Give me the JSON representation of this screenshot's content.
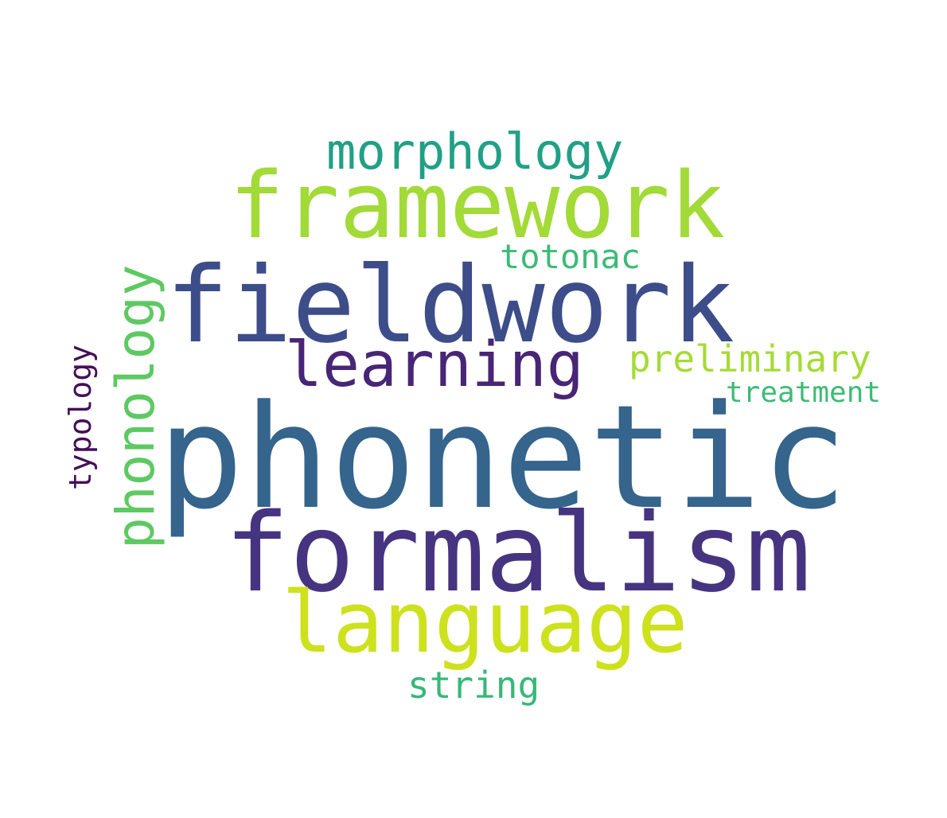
{
  "words": [
    {
      "text": "phonetic",
      "color": "#35648c"
    },
    {
      "text": "formalism",
      "color": "#463480"
    },
    {
      "text": "fieldwork",
      "color": "#3d4d89"
    },
    {
      "text": "framework",
      "color": "#a2da37"
    },
    {
      "text": "language",
      "color": "#cde11d"
    },
    {
      "text": "learning",
      "color": "#482576"
    },
    {
      "text": "morphology",
      "color": "#21a086"
    },
    {
      "text": "phonology",
      "color": "#5ec962"
    },
    {
      "text": "totonac",
      "color": "#3bbb75"
    },
    {
      "text": "preliminary",
      "color": "#a5db36"
    },
    {
      "text": "treatment",
      "color": "#3dbc74"
    },
    {
      "text": "typology",
      "color": "#440f58"
    },
    {
      "text": "string",
      "color": "#37b878"
    }
  ]
}
